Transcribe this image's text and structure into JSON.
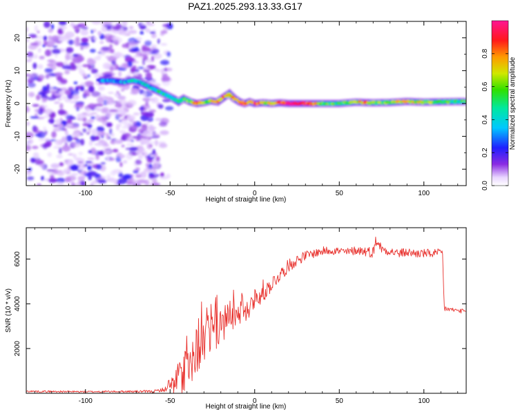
{
  "title": "PAZ1.2025.293.13.33.G17",
  "colors": {
    "snr_line": "#e8302c",
    "track_core": "#e8005a",
    "noise": "#7b1fe6"
  },
  "chart_data": [
    {
      "type": "heatmap",
      "id": "spectrogram",
      "xlabel": "Height of straight line (km)",
      "ylabel": "Frequency (Hz)",
      "xlim": [
        -135,
        125
      ],
      "ylim": [
        -25,
        25
      ],
      "xticks": [
        -100,
        -50,
        0,
        50,
        100
      ],
      "yticks": [
        -20,
        -10,
        0,
        10,
        20
      ],
      "xtick_labels": [
        "-100",
        "-50",
        "0",
        "50",
        "100"
      ],
      "ytick_labels": [
        "-20",
        "-10",
        "0",
        "10",
        "20"
      ],
      "noise_region_x": [
        -135,
        -55
      ],
      "track": {
        "x": [
          -92,
          -85,
          -78,
          -72,
          -68,
          -64,
          -60,
          -56,
          -52,
          -48,
          -45,
          -42,
          -38,
          -34,
          -30,
          -26,
          -22,
          -18,
          -15,
          -12,
          -9,
          -6,
          -3,
          0,
          5,
          10,
          15,
          20,
          25,
          30,
          40,
          50,
          60,
          65,
          70,
          80,
          90,
          100,
          110,
          125
        ],
        "y": [
          7,
          7,
          6.5,
          7,
          6.5,
          5.5,
          4.5,
          3.5,
          2.5,
          1.5,
          0.5,
          1.5,
          0.5,
          0,
          0.3,
          0.8,
          0.5,
          2,
          3,
          1.5,
          0.5,
          0,
          0.5,
          0,
          0.2,
          0,
          0.2,
          0,
          0,
          0,
          0,
          0,
          0.4,
          0.3,
          0.2,
          0.3,
          0.6,
          0.4,
          0.5,
          0.6
        ],
        "amplitude": [
          0.3,
          0.25,
          0.3,
          0.4,
          0.35,
          0.4,
          0.4,
          0.45,
          0.4,
          0.45,
          0.5,
          0.55,
          0.6,
          0.85,
          0.6,
          0.6,
          0.8,
          0.8,
          0.7,
          0.75,
          0.75,
          0.85,
          0.75,
          0.9,
          0.7,
          0.75,
          0.9,
          0.9,
          0.95,
          0.95,
          0.6,
          0.5,
          0.6,
          0.8,
          0.6,
          0.55,
          0.75,
          0.6,
          0.55,
          0.5
        ]
      },
      "colorbar": {
        "label": "Normalized spectral amplitude",
        "range": [
          0,
          1
        ],
        "ticks": [
          0.0,
          0.2,
          0.4,
          0.6,
          0.8
        ],
        "tick_labels": [
          "0.0",
          "0.2",
          "0.4",
          "0.6",
          "0.8"
        ]
      }
    },
    {
      "type": "line",
      "id": "snr",
      "xlabel": "Height of straight line (km)",
      "ylabel": "SNR (10 * v/v)",
      "xlim": [
        -135,
        125
      ],
      "ylim": [
        0,
        7400
      ],
      "xticks": [
        -100,
        -50,
        0,
        50,
        100
      ],
      "yticks": [
        2000,
        4000,
        6000
      ],
      "xtick_labels": [
        "-100",
        "-50",
        "0",
        "50",
        "100"
      ],
      "ytick_labels": [
        "2000",
        "4000",
        "6000"
      ],
      "series": [
        {
          "name": "SNR",
          "x": [
            -135,
            -120,
            -100,
            -80,
            -60,
            -55,
            -52,
            -50,
            -48,
            -45,
            -42,
            -40,
            -35,
            -30,
            -25,
            -20,
            -15,
            -10,
            -5,
            0,
            5,
            10,
            15,
            20,
            25,
            30,
            35,
            40,
            45,
            50,
            55,
            60,
            65,
            70,
            72,
            75,
            80,
            85,
            90,
            95,
            100,
            105,
            110,
            111,
            112,
            115,
            120,
            125
          ],
          "y": [
            90,
            80,
            70,
            80,
            80,
            150,
            200,
            320,
            400,
            600,
            900,
            1200,
            1800,
            2300,
            2700,
            3000,
            3300,
            3500,
            3700,
            4000,
            4400,
            4900,
            5300,
            5700,
            5950,
            6150,
            6250,
            6350,
            6400,
            6350,
            6300,
            6400,
            6350,
            6300,
            6900,
            6450,
            6350,
            6250,
            6300,
            6250,
            6250,
            6250,
            6250,
            6300,
            3800,
            3750,
            3700,
            3650
          ],
          "noise_amplitude": [
            40,
            40,
            40,
            40,
            60,
            80,
            150,
            300,
            450,
            700,
            900,
            1000,
            1100,
            1000,
            900,
            800,
            700,
            600,
            500,
            450,
            400,
            350,
            300,
            300,
            250,
            220,
            200,
            200,
            200,
            200,
            200,
            200,
            220,
            250,
            300,
            200,
            200,
            200,
            200,
            200,
            200,
            200,
            200,
            200,
            150,
            100,
            100,
            100
          ]
        }
      ]
    }
  ]
}
